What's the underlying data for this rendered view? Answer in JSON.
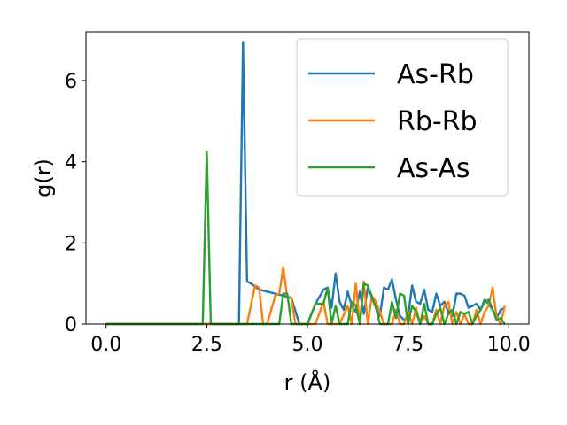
{
  "chart_data": {
    "type": "line",
    "title": "",
    "xlabel": "r (Å)",
    "ylabel": "g(r)",
    "xlim": [
      -0.5,
      10.5
    ],
    "ylim": [
      0,
      7.2
    ],
    "xticks": [
      0.0,
      2.5,
      5.0,
      7.5,
      10.0
    ],
    "xtick_labels": [
      "0.0",
      "2.5",
      "5.0",
      "7.5",
      "10.0"
    ],
    "yticks": [
      0,
      2,
      4,
      6
    ],
    "ytick_labels": [
      "0",
      "2",
      "4",
      "6"
    ],
    "grid": false,
    "legend_position": "top-right",
    "series": [
      {
        "name": "As-Rb",
        "color": "#1f77b4",
        "x": [
          0.0,
          3.3,
          3.4,
          3.5,
          3.6,
          3.8,
          4.0,
          4.2,
          4.4,
          4.6,
          4.8,
          5.0,
          5.2,
          5.4,
          5.5,
          5.6,
          5.7,
          5.8,
          5.9,
          6.0,
          6.1,
          6.2,
          6.3,
          6.4,
          6.5,
          6.6,
          6.7,
          6.8,
          6.9,
          7.0,
          7.1,
          7.2,
          7.3,
          7.4,
          7.5,
          7.6,
          7.7,
          7.8,
          7.9,
          8.0,
          8.1,
          8.2,
          8.3,
          8.4,
          8.5,
          8.6,
          8.7,
          8.8,
          8.9,
          9.0,
          9.1,
          9.2,
          9.3,
          9.4,
          9.5,
          9.6,
          9.7,
          9.8,
          9.9
        ],
        "y": [
          0.0,
          0.0,
          6.95,
          1.05,
          1.0,
          0.85,
          0.8,
          0.75,
          0.7,
          0.65,
          0.0,
          0.0,
          0.5,
          0.85,
          0.9,
          0.4,
          1.25,
          0.55,
          0.35,
          0.8,
          0.45,
          0.3,
          0.8,
          0.25,
          0.9,
          0.7,
          0.4,
          0.2,
          0.9,
          0.85,
          1.1,
          0.6,
          0.2,
          0.1,
          0.2,
          0.95,
          0.55,
          0.5,
          0.85,
          0.35,
          0.3,
          0.75,
          0.45,
          0.55,
          0.3,
          0.2,
          0.75,
          0.75,
          0.7,
          0.4,
          0.45,
          0.5,
          0.35,
          0.6,
          0.5,
          0.35,
          0.15,
          0.35,
          0.4
        ]
      },
      {
        "name": "Rb-Rb",
        "color": "#ff7f0e",
        "x": [
          0.0,
          3.5,
          3.7,
          3.8,
          3.9,
          4.0,
          4.2,
          4.3,
          4.4,
          4.5,
          4.6,
          4.7,
          4.8,
          5.0,
          5.2,
          5.4,
          5.5,
          5.6,
          5.8,
          6.0,
          6.1,
          6.2,
          6.3,
          6.4,
          6.5,
          6.6,
          6.7,
          6.8,
          6.9,
          7.0,
          7.1,
          7.2,
          7.3,
          7.4,
          7.5,
          7.6,
          7.7,
          7.8,
          7.9,
          8.0,
          8.1,
          8.2,
          8.3,
          8.4,
          8.5,
          8.6,
          8.7,
          8.8,
          8.9,
          9.0,
          9.1,
          9.2,
          9.3,
          9.4,
          9.5,
          9.6,
          9.7,
          9.8,
          9.9
        ],
        "y": [
          0.0,
          0.0,
          0.95,
          0.9,
          0.0,
          0.0,
          0.7,
          0.75,
          1.4,
          0.65,
          0.65,
          0.0,
          0.0,
          0.0,
          0.0,
          0.55,
          0.0,
          0.0,
          0.0,
          0.45,
          0.0,
          1.0,
          0.0,
          1.05,
          0.0,
          0.7,
          0.55,
          0.3,
          0.0,
          0.0,
          0.0,
          0.35,
          0.0,
          0.0,
          0.3,
          0.0,
          0.4,
          0.0,
          0.2,
          0.0,
          0.0,
          0.35,
          0.0,
          0.45,
          0.55,
          0.0,
          0.3,
          0.0,
          0.25,
          0.0,
          0.0,
          0.35,
          0.0,
          0.3,
          0.45,
          0.9,
          0.15,
          0.0,
          0.45
        ]
      },
      {
        "name": "As-As",
        "color": "#2ca02c",
        "x": [
          0.0,
          2.4,
          2.5,
          2.6,
          2.7,
          4.3,
          4.4,
          4.5,
          4.6,
          5.0,
          5.2,
          5.4,
          5.5,
          5.6,
          5.7,
          5.8,
          5.9,
          6.0,
          6.1,
          6.2,
          6.3,
          6.4,
          6.5,
          6.6,
          6.7,
          6.8,
          6.9,
          7.0,
          7.1,
          7.2,
          7.3,
          7.4,
          7.5,
          7.6,
          7.7,
          7.8,
          7.9,
          8.0,
          8.1,
          8.2,
          8.3,
          8.4,
          8.5,
          8.6,
          8.7,
          8.8,
          8.9,
          9.0,
          9.1,
          9.2,
          9.3,
          9.4,
          9.5,
          9.6,
          9.7,
          9.8,
          9.9
        ],
        "y": [
          0.0,
          0.0,
          4.25,
          0.0,
          0.0,
          0.0,
          0.75,
          0.75,
          0.0,
          0.0,
          0.5,
          0.5,
          0.9,
          0.0,
          0.45,
          0.0,
          0.0,
          0.0,
          0.55,
          0.45,
          0.0,
          1.0,
          0.95,
          0.65,
          0.4,
          0.0,
          0.0,
          0.0,
          0.55,
          0.15,
          0.75,
          0.7,
          0.0,
          0.45,
          0.3,
          0.0,
          0.5,
          0.0,
          0.0,
          0.25,
          0.4,
          0.0,
          0.25,
          0.35,
          0.0,
          0.3,
          0.25,
          0.3,
          0.0,
          0.2,
          0.35,
          0.55,
          0.6,
          0.35,
          0.1,
          0.15,
          0.0
        ]
      }
    ]
  }
}
